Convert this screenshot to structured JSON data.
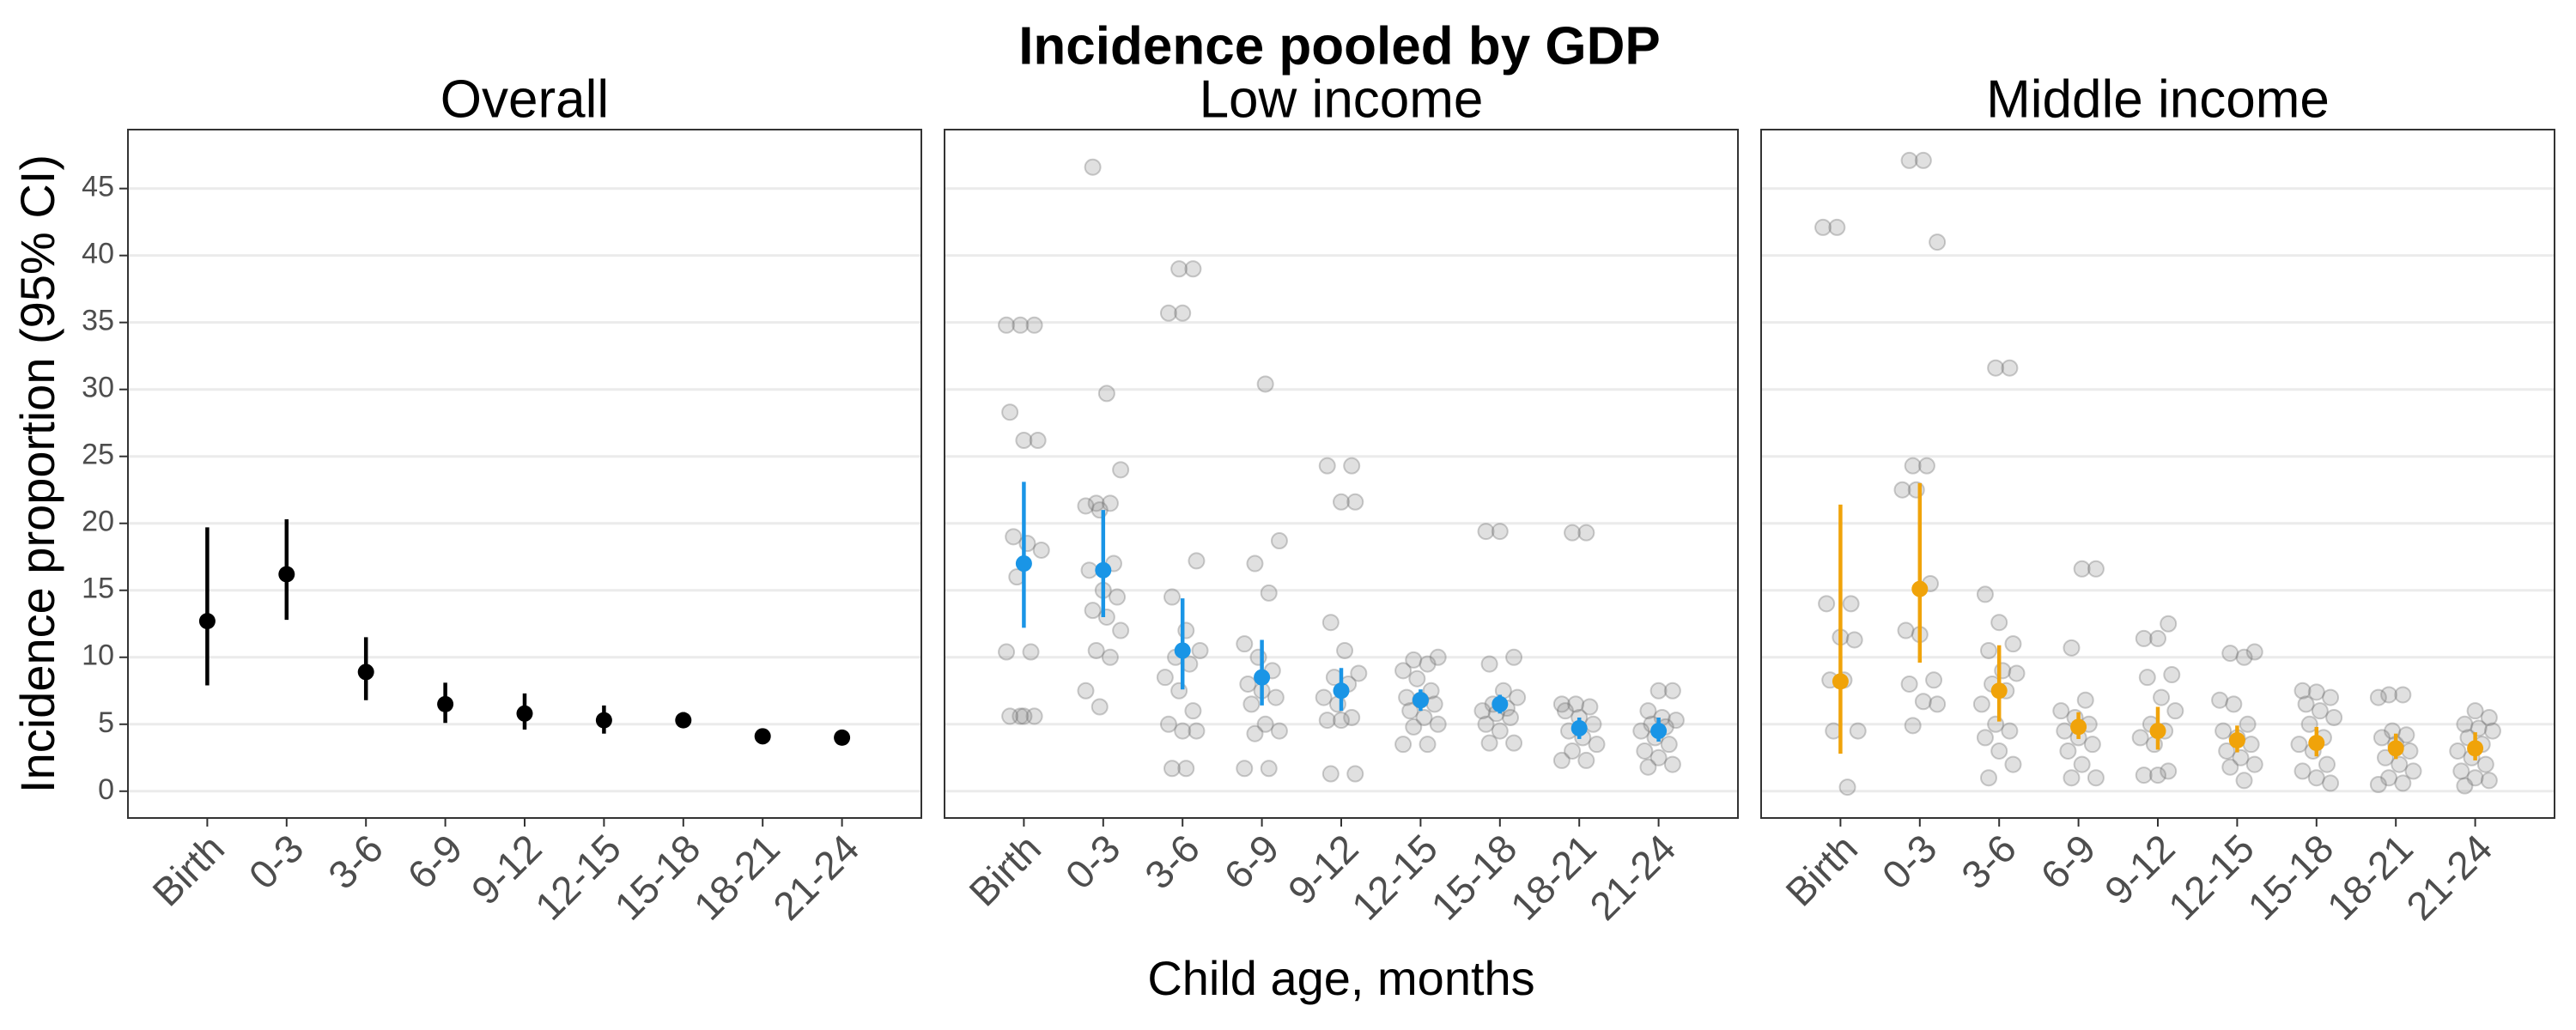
{
  "title": "Incidence pooled by GDP",
  "x_label": "Child age, months",
  "y_label": "Incidence proportion (95% CI)",
  "chart_data": [
    {
      "type": "pointrange",
      "title": "Overall",
      "color": "#000000",
      "categories": [
        "Birth",
        "0-3",
        "3-6",
        "6-9",
        "9-12",
        "12-15",
        "15-18",
        "18-21",
        "21-24"
      ],
      "values": [
        12.7,
        16.2,
        8.9,
        6.5,
        5.8,
        5.3,
        5.3,
        4.1,
        4.0
      ],
      "lower": [
        7.9,
        12.8,
        6.8,
        5.1,
        4.6,
        4.3,
        4.8,
        3.6,
        3.5
      ],
      "upper": [
        19.7,
        20.3,
        11.5,
        8.1,
        7.3,
        6.4,
        5.9,
        4.6,
        4.5
      ],
      "ylim": [
        -2,
        49.4
      ],
      "yticks": [
        0,
        5,
        10,
        15,
        20,
        25,
        30,
        35,
        40,
        45
      ],
      "grid": true
    },
    {
      "type": "pointrange",
      "title": "Low income",
      "color": "#1a95e6",
      "categories": [
        "Birth",
        "0-3",
        "3-6",
        "6-9",
        "9-12",
        "12-15",
        "15-18",
        "18-21",
        "21-24"
      ],
      "values": [
        17.0,
        16.5,
        10.5,
        8.5,
        7.5,
        6.8,
        6.5,
        4.7,
        4.5
      ],
      "lower": [
        12.2,
        13.0,
        7.6,
        6.4,
        6.0,
        6.0,
        5.8,
        3.9,
        3.7
      ],
      "upper": [
        23.1,
        21.0,
        14.4,
        11.3,
        9.2,
        7.6,
        7.2,
        5.5,
        5.5
      ],
      "studies": [
        [
          34.8,
          34.8,
          34.8,
          28.3,
          26.2,
          26.2,
          19.0,
          18.5,
          18.0,
          16.0,
          10.4,
          10.4,
          5.6,
          5.6,
          5.6,
          5.6
        ],
        [
          46.6,
          29.7,
          24.0,
          21.5,
          21.5,
          21.3,
          21.0,
          17.0,
          16.5,
          15.0,
          14.5,
          13.5,
          13.0,
          12.0,
          10.5,
          10.0,
          7.5,
          6.3
        ],
        [
          39.0,
          39.0,
          35.7,
          35.7,
          17.2,
          14.5,
          12.0,
          10.5,
          10.0,
          9.5,
          8.5,
          7.5,
          6.0,
          5.0,
          4.5,
          4.5,
          1.7,
          1.7
        ],
        [
          30.4,
          18.7,
          17.0,
          14.8,
          11.0,
          10.0,
          9.0,
          8.0,
          7.5,
          7.0,
          6.5,
          5.0,
          4.5,
          4.3,
          1.7,
          1.7
        ],
        [
          24.3,
          24.3,
          21.6,
          21.6,
          12.6,
          10.5,
          8.8,
          8.5,
          8.0,
          7.0,
          6.5,
          5.5,
          5.3,
          5.3,
          1.3,
          1.3
        ],
        [
          10.0,
          9.8,
          9.5,
          9.0,
          8.4,
          7.5,
          7.0,
          6.8,
          6.5,
          6.0,
          5.5,
          5.0,
          4.8,
          3.5,
          3.5
        ],
        [
          19.4,
          19.4,
          10.0,
          9.5,
          7.5,
          7.0,
          6.5,
          6.2,
          6.0,
          5.8,
          5.5,
          5.0,
          4.5,
          3.6,
          3.6
        ],
        [
          19.3,
          19.3,
          6.5,
          6.5,
          6.3,
          6.0,
          5.5,
          5.0,
          4.5,
          4.0,
          3.5,
          3.0,
          2.3,
          2.3
        ],
        [
          7.5,
          7.5,
          6.0,
          5.5,
          5.3,
          5.0,
          4.8,
          4.5,
          4.0,
          3.5,
          3.0,
          2.5,
          2.0,
          1.8
        ]
      ],
      "ylim": [
        -2,
        49.4
      ],
      "yticks": [
        0,
        5,
        10,
        15,
        20,
        25,
        30,
        35,
        40,
        45
      ],
      "grid": true
    },
    {
      "type": "pointrange",
      "title": "Middle income",
      "color": "#f0a30a",
      "categories": [
        "Birth",
        "0-3",
        "3-6",
        "6-9",
        "9-12",
        "12-15",
        "15-18",
        "18-21",
        "21-24"
      ],
      "values": [
        8.2,
        15.1,
        7.5,
        4.8,
        4.5,
        3.8,
        3.6,
        3.2,
        3.2
      ],
      "lower": [
        2.8,
        9.6,
        5.2,
        3.9,
        3.1,
        2.9,
        2.6,
        2.4,
        2.3
      ],
      "upper": [
        21.4,
        23.0,
        10.9,
        5.9,
        6.3,
        4.9,
        4.8,
        4.3,
        4.4
      ],
      "studies": [
        [
          42.1,
          42.1,
          14.0,
          14.0,
          11.5,
          11.3,
          8.3,
          8.3,
          4.5,
          4.5,
          0.3
        ],
        [
          47.1,
          47.1,
          41.0,
          24.3,
          24.3,
          22.5,
          22.5,
          15.5,
          12.0,
          11.7,
          8.3,
          8.0,
          6.7,
          6.5,
          4.9
        ],
        [
          31.6,
          31.6,
          14.7,
          12.6,
          11.0,
          10.5,
          9.0,
          8.8,
          8.0,
          7.5,
          6.5,
          5.0,
          4.5,
          4.0,
          3.0,
          2.0,
          1.0
        ],
        [
          16.6,
          16.6,
          10.7,
          6.8,
          6.0,
          5.5,
          5.0,
          4.5,
          4.0,
          3.5,
          3.0,
          2.0,
          1.0,
          1.0
        ],
        [
          12.5,
          11.4,
          11.4,
          8.7,
          8.5,
          7.0,
          6.0,
          5.0,
          4.5,
          4.0,
          3.5,
          1.5,
          1.2,
          1.2
        ],
        [
          10.4,
          10.3,
          10.0,
          6.8,
          6.5,
          5.0,
          4.5,
          4.0,
          3.5,
          3.0,
          2.5,
          2.0,
          1.8,
          0.8
        ],
        [
          7.5,
          7.4,
          7.0,
          6.5,
          6.0,
          5.5,
          5.0,
          4.0,
          3.5,
          3.0,
          2.0,
          1.5,
          1.0,
          0.6
        ],
        [
          7.2,
          7.2,
          7.0,
          4.5,
          4.2,
          4.0,
          3.5,
          3.0,
          2.5,
          2.0,
          1.5,
          1.0,
          0.6,
          0.5
        ],
        [
          6.0,
          5.5,
          5.0,
          4.7,
          4.5,
          4.0,
          3.5,
          3.0,
          2.5,
          2.0,
          1.5,
          1.0,
          0.8,
          0.4
        ]
      ],
      "ylim": [
        -2,
        49.4
      ],
      "yticks": [
        0,
        5,
        10,
        15,
        20,
        25,
        30,
        35,
        40,
        45
      ],
      "grid": true
    }
  ]
}
